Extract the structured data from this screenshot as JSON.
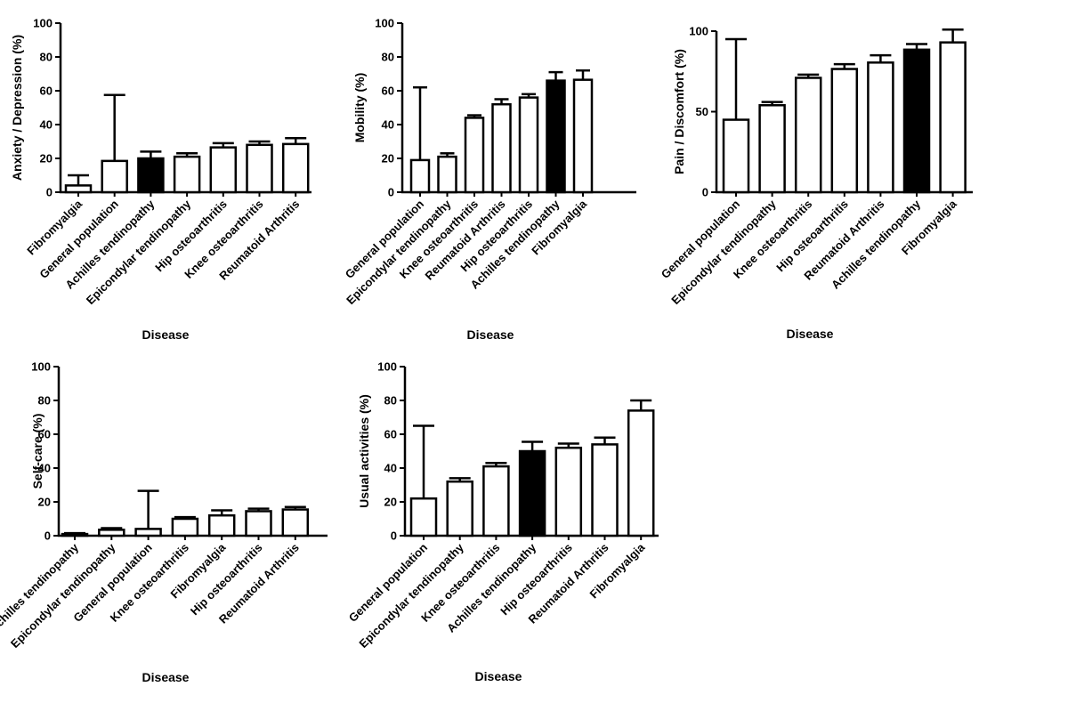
{
  "chart_data": [
    {
      "type": "bar",
      "ylabel": "Anxiety / Depression (%)",
      "xlabel": "Disease",
      "ylim": [
        0,
        100
      ],
      "yticks": [
        0,
        20,
        40,
        60,
        80,
        100
      ],
      "categories": [
        "Fibromyalgia",
        "General population",
        "Achilles tendinopathy",
        "Epicondylar tendinopathy",
        "Hip osteoarthritis",
        "Knee osteoarthritis",
        "Reumatoid Arthritis"
      ],
      "values": [
        4,
        18.5,
        20,
        21,
        26.5,
        28,
        28.5
      ],
      "error_upper": [
        10,
        57.5,
        24,
        23,
        29,
        30,
        32
      ],
      "highlight": [
        false,
        false,
        true,
        false,
        false,
        false,
        false
      ]
    },
    {
      "type": "bar",
      "ylabel": "Mobility (%)",
      "xlabel": "Disease",
      "ylim": [
        0,
        100
      ],
      "yticks": [
        0,
        20,
        40,
        60,
        80,
        100
      ],
      "categories": [
        "General population",
        "Epicondylar tendinopathy",
        "Knee osteoarthritis",
        "Reumatoid Arthritis",
        "Hip osteoarthritis",
        "Achilles tendinopathy",
        "Fibromyalgia"
      ],
      "values": [
        19,
        21,
        44,
        52,
        56,
        66,
        66.5
      ],
      "error_upper": [
        62,
        23,
        45.5,
        55,
        58,
        71,
        72
      ],
      "highlight": [
        false,
        false,
        false,
        false,
        false,
        true,
        false
      ]
    },
    {
      "type": "bar",
      "ylabel": "Pain / Discomfort (%)",
      "xlabel": "Disease",
      "ylim": [
        0,
        100
      ],
      "yticks": [
        0,
        50,
        100
      ],
      "categories": [
        "General population",
        "Epicondylar tendinopathy",
        "Knee osteoarthritis",
        "Hip osteoarthritis",
        "Reumatoid Arthritis",
        "Achilles tendinopathy",
        "Fibromyalgia"
      ],
      "values": [
        45,
        54,
        71,
        76.5,
        80.5,
        88.5,
        93
      ],
      "error_upper": [
        95,
        56,
        73,
        79.5,
        85,
        92,
        101
      ],
      "highlight": [
        false,
        false,
        false,
        false,
        false,
        true,
        false
      ]
    },
    {
      "type": "bar",
      "ylabel": "Self-care (%)",
      "xlabel": "Disease",
      "ylim": [
        0,
        100
      ],
      "yticks": [
        0,
        20,
        40,
        60,
        80,
        100
      ],
      "categories": [
        "Achilles tendinopathy",
        "Epicondylar tendinopathy",
        "General population",
        "Knee osteoarthritis",
        "Fibromyalgia",
        "Hip osteoarthritis",
        "Reumatoid Arthritis"
      ],
      "values": [
        1,
        3.5,
        4,
        10,
        12,
        14.5,
        15.5
      ],
      "error_upper": [
        1.5,
        4.5,
        26.5,
        11,
        15,
        16,
        17
      ],
      "highlight": [
        false,
        false,
        false,
        false,
        false,
        false,
        false
      ]
    },
    {
      "type": "bar",
      "ylabel": "Usual activities (%)",
      "xlabel": "Disease",
      "ylim": [
        0,
        100
      ],
      "yticks": [
        0,
        20,
        40,
        60,
        80,
        100
      ],
      "categories": [
        "General population",
        "Epicondylar tendinopathy",
        "Knee osteoarthritis",
        "Achilles tendinopathy",
        "Hip osteoarthritis",
        "Reumatoid Arthritis",
        "Fibromyalgia"
      ],
      "values": [
        22,
        32,
        41,
        50,
        52,
        54,
        74
      ],
      "error_upper": [
        65,
        34,
        43,
        55.5,
        54.5,
        58,
        80
      ],
      "highlight": [
        false,
        false,
        false,
        true,
        false,
        false,
        false
      ]
    }
  ]
}
